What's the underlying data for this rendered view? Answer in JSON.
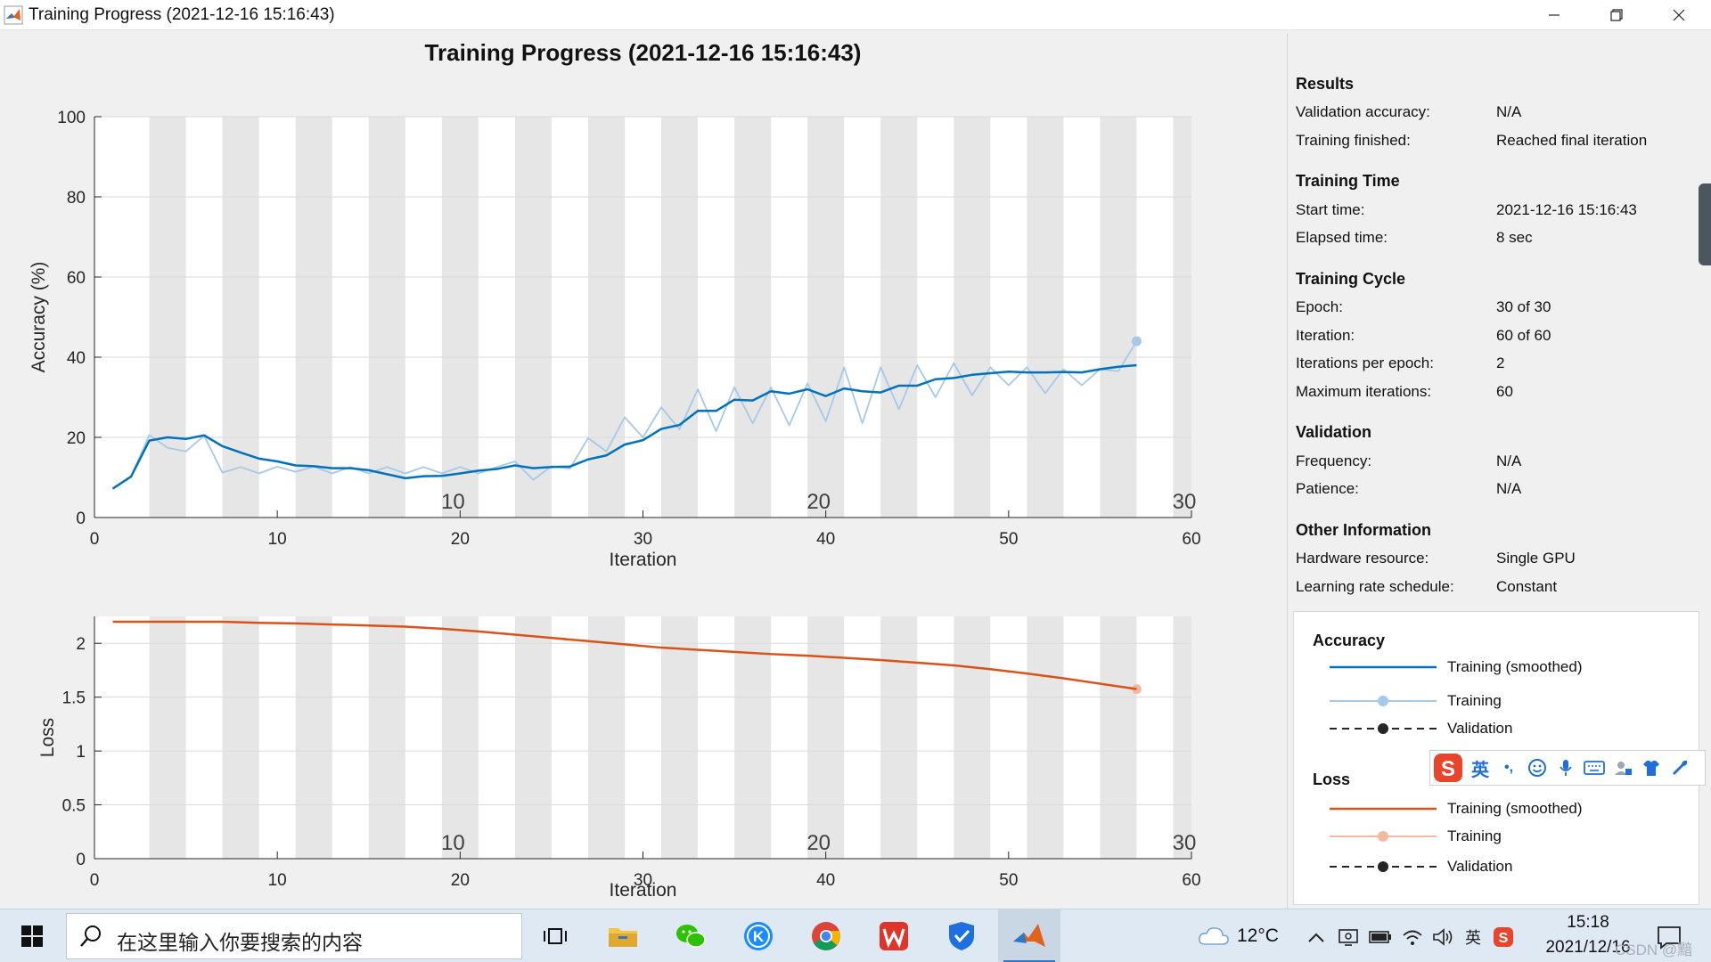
{
  "window": {
    "title": "Training Progress (2021-12-16 15:16:43)"
  },
  "chart_title": "Training Progress (2021-12-16 15:16:43)",
  "chart_data": [
    {
      "type": "line",
      "name": "accuracy",
      "xlabel": "Iteration",
      "ylabel": "Accuracy (%)",
      "xlim": [
        0,
        60
      ],
      "ylim": [
        0,
        100
      ],
      "xticks": [
        0,
        10,
        20,
        30,
        40,
        50,
        60
      ],
      "yticks": [
        0,
        20,
        40,
        60,
        80,
        100
      ],
      "grid": true,
      "epoch_shading": "alternating gray/white bands, one per epoch (2 iterations)",
      "epoch_labels": [
        "10",
        "20",
        "30"
      ],
      "epoch_label_iterations": [
        20,
        40,
        60
      ],
      "series": [
        {
          "name": "Training (smoothed)",
          "color": "#0072bd",
          "x": [
            1,
            2,
            3,
            4,
            5,
            6,
            7,
            8,
            9,
            10,
            11,
            12,
            13,
            14,
            15,
            16,
            17,
            18,
            19,
            20,
            21,
            22,
            23,
            24,
            25,
            26,
            27,
            28,
            29,
            30,
            31,
            32,
            33,
            34,
            35,
            36,
            37,
            38,
            39,
            40,
            41,
            42,
            43,
            44,
            45,
            46,
            47,
            48,
            49,
            50,
            51,
            52,
            53,
            54,
            55,
            56,
            57
          ],
          "y": [
            7.2,
            10.2,
            19.2,
            20.0,
            19.6,
            20.5,
            17.8,
            16.2,
            14.7,
            14.0,
            13.0,
            12.8,
            12.3,
            12.3,
            11.8,
            10.8,
            9.8,
            10.3,
            10.4,
            11.0,
            11.7,
            12.1,
            13.0,
            12.3,
            12.6,
            12.7,
            14.5,
            15.5,
            18.2,
            19.3,
            22.1,
            23.1,
            26.6,
            26.6,
            29.4,
            29.2,
            31.5,
            30.9,
            32.0,
            30.3,
            32.2,
            31.5,
            31.2,
            32.9,
            32.9,
            34.5,
            34.8,
            35.6,
            36.0,
            36.4,
            36.2,
            36.2,
            36.3,
            36.2,
            37.0,
            37.6,
            38.0
          ]
        },
        {
          "name": "Training",
          "color": "#a6c9e8",
          "x": [
            1,
            2,
            3,
            4,
            5,
            6,
            7,
            8,
            9,
            10,
            11,
            12,
            13,
            14,
            15,
            16,
            17,
            18,
            19,
            20,
            21,
            22,
            23,
            24,
            25,
            26,
            27,
            28,
            29,
            30,
            31,
            32,
            33,
            34,
            35,
            36,
            37,
            38,
            39,
            40,
            41,
            42,
            43,
            44,
            45,
            46,
            47,
            48,
            49,
            50,
            51,
            52,
            53,
            54,
            55,
            56,
            57
          ],
          "y": [
            7.2,
            10.2,
            20.6,
            17.4,
            16.5,
            20.4,
            11.2,
            12.6,
            11.0,
            12.7,
            11.4,
            12.7,
            11.0,
            12.6,
            11.0,
            12.6,
            11.0,
            12.6,
            11.0,
            12.6,
            11.0,
            12.6,
            14.0,
            9.4,
            12.8,
            12.2,
            19.8,
            16.5,
            25.0,
            20.0,
            27.5,
            22.0,
            32.0,
            21.5,
            32.5,
            23.5,
            32.5,
            23.0,
            33.5,
            24.0,
            37.5,
            23.5,
            37.5,
            27.0,
            38.0,
            30.0,
            38.5,
            30.5,
            37.5,
            33.0,
            37.5,
            31.0,
            37.0,
            33.0,
            37.0,
            36.5,
            44.0
          ]
        }
      ]
    },
    {
      "type": "line",
      "name": "loss",
      "xlabel": "Iteration",
      "ylabel": "Loss",
      "xlim": [
        0,
        60
      ],
      "ylim": [
        0,
        2.25
      ],
      "xticks": [
        0,
        10,
        20,
        30,
        40,
        50,
        60
      ],
      "yticks": [
        0,
        0.5,
        1,
        1.5,
        2
      ],
      "ytick_labels": [
        "0",
        "0.5",
        "1",
        "1.5",
        "2"
      ],
      "grid": true,
      "epoch_labels": [
        "10",
        "20",
        "30"
      ],
      "epoch_label_iterations": [
        20,
        40,
        60
      ],
      "series": [
        {
          "name": "Training (smoothed)",
          "color": "#d95319",
          "x": [
            1,
            3,
            5,
            7,
            9,
            11,
            13,
            15,
            17,
            19,
            21,
            23,
            25,
            27,
            29,
            31,
            33,
            35,
            37,
            39,
            41,
            43,
            45,
            47,
            49,
            51,
            53,
            55,
            57
          ],
          "y": [
            2.2,
            2.2,
            2.2,
            2.2,
            2.19,
            2.185,
            2.175,
            2.165,
            2.155,
            2.135,
            2.11,
            2.08,
            2.05,
            2.02,
            1.99,
            1.96,
            1.94,
            1.92,
            1.9,
            1.885,
            1.865,
            1.845,
            1.82,
            1.795,
            1.76,
            1.72,
            1.675,
            1.625,
            1.575
          ]
        },
        {
          "name": "Training",
          "color": "#f4b9a3",
          "x": [
            1,
            3,
            5,
            7,
            9,
            11,
            13,
            15,
            17,
            19,
            21,
            23,
            25,
            27,
            29,
            31,
            33,
            35,
            37,
            39,
            41,
            43,
            45,
            47,
            49,
            51,
            53,
            55,
            57
          ],
          "y": [
            2.2,
            2.2,
            2.2,
            2.2,
            2.19,
            2.185,
            2.175,
            2.165,
            2.155,
            2.135,
            2.11,
            2.08,
            2.05,
            2.02,
            1.99,
            1.96,
            1.94,
            1.92,
            1.9,
            1.885,
            1.865,
            1.845,
            1.82,
            1.795,
            1.76,
            1.72,
            1.675,
            1.625,
            1.575
          ]
        }
      ]
    }
  ],
  "panel": {
    "results": {
      "title": "Results",
      "rows": [
        {
          "label": "Validation accuracy:",
          "value": "N/A"
        },
        {
          "label": "Training finished:",
          "value": "Reached final iteration"
        }
      ]
    },
    "training_time": {
      "title": "Training Time",
      "rows": [
        {
          "label": "Start time:",
          "value": "2021-12-16 15:16:43"
        },
        {
          "label": "Elapsed time:",
          "value": "8 sec"
        }
      ]
    },
    "training_cycle": {
      "title": "Training Cycle",
      "rows": [
        {
          "label": "Epoch:",
          "value": "30 of 30"
        },
        {
          "label": "Iteration:",
          "value": "60 of 60"
        },
        {
          "label": "Iterations per epoch:",
          "value": "2"
        },
        {
          "label": "Maximum iterations:",
          "value": "60"
        }
      ]
    },
    "validation": {
      "title": "Validation",
      "rows": [
        {
          "label": "Frequency:",
          "value": "N/A"
        },
        {
          "label": "Patience:",
          "value": "N/A"
        }
      ]
    },
    "other_information": {
      "title": "Other Information",
      "rows": [
        {
          "label": "Hardware resource:",
          "value": "Single GPU"
        },
        {
          "label": "Learning rate schedule:",
          "value": "Constant"
        }
      ]
    }
  },
  "legend": {
    "accuracy_title": "Accuracy",
    "accuracy_items": [
      "Training (smoothed)",
      "Training",
      "Validation"
    ],
    "loss_title": "Loss",
    "loss_items": [
      "Training (smoothed)",
      "Training",
      "Validation"
    ],
    "colors": {
      "acc_smoothed": "#0072bd",
      "acc_training": "#a6c9e8",
      "loss_smoothed": "#d95319",
      "loss_training": "#f4b9a3",
      "validation": "#262626"
    }
  },
  "ime": {
    "lang": "英",
    "punct": "•,"
  },
  "taskbar": {
    "search_placeholder": "在这里输入你要搜索的内容",
    "temperature": "12°C",
    "time": "15:18",
    "date": "2021/12/16",
    "tray_lang": "英",
    "watermark": "CSDN @黯"
  }
}
